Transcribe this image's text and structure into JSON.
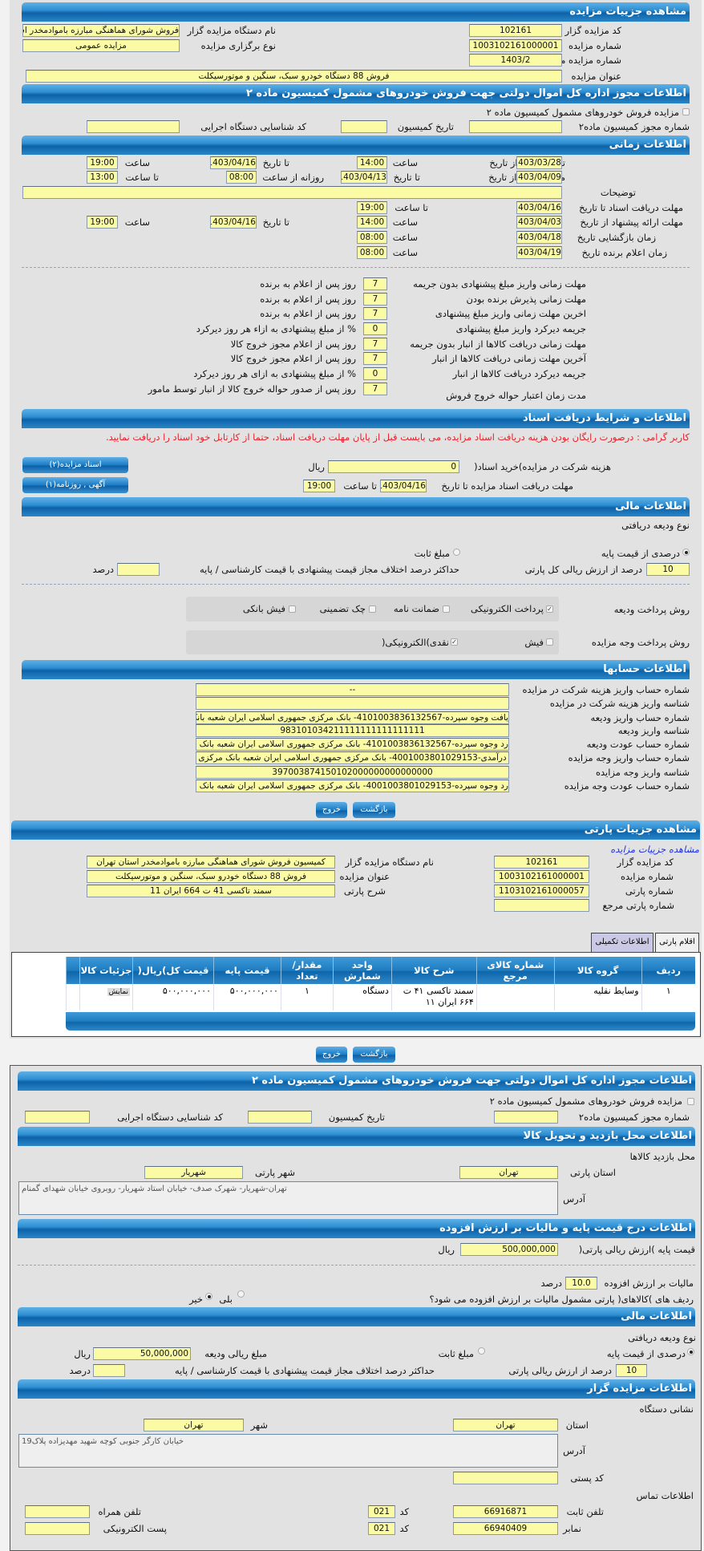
{
  "auction": {
    "title": "مشاهده جزییات مزایده",
    "code_label": "کد مزایده گزار",
    "code": "102161",
    "org_label": "نام دستگاه مزایده گزار",
    "org": "فروش شورای هماهنگی مبارزه باموادمخدر اس",
    "number_label": "شماره مزایده",
    "number": "1003102161000001",
    "type_label": "نوع برگزاری مزایده",
    "type": "مزایده عمومی",
    "ref_label": "شماره مزایده مرجع",
    "ref": "1403/2",
    "subject_label": "عنوان مزایده",
    "subject": "فروش 88 دستگاه خودرو سبک، سنگین و موتورسیکلت"
  },
  "permit": {
    "title": "اطلاعات مجوز اداره کل اموال دولتی جهت فروش خودروهای مشمول کمیسیون ماده ۲",
    "checkbox_label": "مزایده فروش خودروهای مشمول کمیسیون ماده ۲",
    "permit_no_label": "شماره مجوز کمیسیون ماده۲",
    "permit_no": "",
    "date_label": "تاریخ کمیسیون",
    "date": "",
    "exec_code_label": "کد شناسایی دستگاه اجرایی",
    "exec_code": ""
  },
  "timing": {
    "title": "اطلاعات زمانی",
    "publish": {
      "label": "تاریخ انتشار از تاریخ",
      "from_date": "1403/03/28",
      "time_label": "ساعت",
      "from_time": "14:00",
      "to_label": "تا تاریخ",
      "to_date": "1403/04/16",
      "time2_label": "ساعت",
      "to_time": "19:00"
    },
    "visit": {
      "label": "مهلت بازدید از تاریخ",
      "from_date": "1403/04/09",
      "to_label": "تا تاریخ",
      "to_date": "1403/04/13",
      "daily_label": "روزانه از ساعت",
      "daily_from": "08:00",
      "daily_to_label": "تا ساعت",
      "daily_to": "13:00"
    },
    "desc_label": "توضیحات",
    "desc": "",
    "docs": {
      "label": "مهلت دریافت اسناد  تا تاریخ",
      "date": "1403/04/16",
      "time_label": "تا ساعت",
      "time": "19:00"
    },
    "offer": {
      "label": "مهلت ارائه پیشنهاد  از تاریخ",
      "from_date": "1403/04/03",
      "time_label": "ساعت",
      "from_time": "14:00",
      "to_label": "تا تاریخ",
      "to_date": "1403/04/16",
      "time2_label": "ساعت",
      "to_time": "19:00"
    },
    "opening": {
      "label": "زمان بازگشایی   تاریخ",
      "date": "1403/04/18",
      "time_label": "ساعت",
      "time": "08:00"
    },
    "winner": {
      "label": "زمان اعلام برنده   تاریخ",
      "date": "1403/04/19",
      "time_label": "ساعت",
      "time": "08:00"
    }
  },
  "deadlines": [
    {
      "label": "مهلت زمانی واریز مبلغ پیشنهادی بدون جریمه",
      "value": "7",
      "suffix": "روز پس از اعلام به برنده"
    },
    {
      "label": "مهلت زمانی پذیرش برنده بودن",
      "value": "7",
      "suffix": "روز پس از اعلام به برنده"
    },
    {
      "label": "اخرین مهلت زمانی واریز مبلغ پیشنهادی",
      "value": "7",
      "suffix": "روز پس از اعلام به برنده"
    },
    {
      "label": "جریمه دیرکرد واریز مبلغ پیشنهادی",
      "value": "0",
      "suffix": "% از مبلغ پیشنهادی به ازاء هر روز دیرکرد"
    },
    {
      "label": "مهلت زمانی دریافت کالاها از انبار بدون جریمه",
      "value": "7",
      "suffix": "روز پس از اعلام مجوز خروج کالا"
    },
    {
      "label": "آخرین مهلت زمانی دریافت کالاها از انبار",
      "value": "7",
      "suffix": "روز پس از اعلام مجوز خروج کالا"
    },
    {
      "label": "جریمه دیرکرد دریافت کالاها از انبار",
      "value": "0",
      "suffix": "% از مبلغ پیشنهادی به ازای هر روز دیرکرد"
    },
    {
      "label": "مدت زمان اعتبار حواله خروج فروش",
      "value": "7",
      "suffix": "روز پس از صدور حواله خروج کالا از انبار توسط مامور"
    }
  ],
  "documents": {
    "title": "اطلاعات و شرایط دریافت اسناد",
    "notice": "کاربر گرامی : درصورت رایگان بودن هزینه دریافت اسناد مزایده، می بایست قبل از پایان مهلت دریافت اسناد، حتما از کارتابل خود اسناد را دریافت نمایید.",
    "fee_label": "هزینه شرکت در مزایده)خرید اسناد(",
    "fee": "0",
    "fee_unit": "ریال",
    "deadline_label": "مهلت دریافت اسناد مزایده تا تاریخ",
    "deadline_date": "1403/04/16",
    "deadline_time_label": "تا ساعت",
    "deadline_time": "19:00",
    "btn_docs": "اسناد مزایده(۲)",
    "btn_ads": "آگهی , روزنامه(۱)"
  },
  "finance": {
    "title": "اطلاعات مالی",
    "deposit_type_label": "نوع ودیعه دریافتی",
    "opt_percent": "درصدی از قیمت پایه",
    "opt_fixed": "مبلغ ثابت",
    "selected": "percent",
    "percent": "10",
    "percent_label": "درصد از ارزش ریالی کل پارتی",
    "max_diff_label": "حداکثر درصد اختلاف مجاز قیمت پیشنهادی با قیمت کارشناسی / پایه",
    "max_diff": "",
    "max_diff_unit": "درصد",
    "deposit_method_label": "روش پرداخت ودیعه",
    "deposit_methods": [
      {
        "label": "پرداخت الکترونیکی",
        "checked": true
      },
      {
        "label": "ضمانت نامه",
        "checked": false
      },
      {
        "label": "چک تضمینی",
        "checked": false
      },
      {
        "label": "فیش بانکی",
        "checked": false
      }
    ],
    "payment_method_label": "روش پرداخت وجه مزایده",
    "payment_methods": [
      {
        "label": "فیش",
        "checked": false
      },
      {
        "label": "نقدی)الکترونیکی(",
        "checked": true
      }
    ]
  },
  "accounts": {
    "title": "اطلاعات حسابها",
    "rows": [
      {
        "label": "شماره حساب واریز هزینه شرکت در مزایده",
        "value": "--"
      },
      {
        "label": "شناسه واریز هزینه شرکت در مزایده",
        "value": ""
      },
      {
        "label": "شماره حساب واریز ودیعه",
        "value": "یافت وجوه سپرده-4101003836132567- بانک مرکزی جمهوری اسلامی ایران شعبه بانک مرکزی"
      },
      {
        "label": "شناسه واریز ودیعه",
        "value": "983101034211111111111111111"
      },
      {
        "label": "شماره حساب عودت ودیعه",
        "value": "رد وجوه سپرده-4101003836132567- بانک مرکزی جمهوری اسلامی ایران شعبه بانک مرکزی"
      },
      {
        "label": "شماره حساب واریز وجه مزایده",
        "value": "درآمدی-4001003801029153- بانک مرکزی جمهوری اسلامی ایران شعبه بانک مرکزی"
      },
      {
        "label": "شناسه واریز وجه مزایده",
        "value": "397003874150102000000000000000"
      },
      {
        "label": "شماره حساب عودت وجه مزایده",
        "value": "رد وجوه سپرده-4001003801029153- بانک مرکزی جمهوری اسلامی ایران شعبه بانک مرکزی"
      }
    ]
  },
  "actions": {
    "back": "بازگشت",
    "exit": "خروج"
  },
  "lot": {
    "title": "مشاهده جزییات پارتی",
    "auction_link": "مشاهده جزییات مزایده",
    "code_label": "کد مزایده گزار",
    "code": "102161",
    "org_label": "نام دستگاه مزایده گزار",
    "org": "کمیسیون فروش شورای هماهنگی مبارزه باموادمخدر استان تهران",
    "number_label": "شماره مزایده",
    "number": "1003102161000001",
    "subject_label": "عنوان مزایده",
    "subject": "فروش 88 دستگاه خودرو سبک، سنگین و موتورسیکلت",
    "lot_no_label": "شماره پارتی",
    "lot_no": "1103102161000057",
    "desc_label": "شرح پارتی",
    "desc": "سمند تاکسی 41 ت 664 ایران 11",
    "ref_label": "شماره پارتی مرجع",
    "ref": "",
    "tabs": [
      {
        "label": "اقلام پارتی",
        "active": false
      },
      {
        "label": "اطلاعات تکمیلی",
        "active": true
      }
    ],
    "table": {
      "headers": [
        "ردیف",
        "گروه کالا",
        "شماره کالای مرجع",
        "شرح کالا",
        "واحد شمارش",
        "مقدار/ تعداد",
        "قیمت پایه",
        "قیمت کل)ریال(",
        "جزئیات کالا"
      ],
      "rows": [
        [
          "۱",
          "وسایط نقلیه",
          "",
          "سمند تاکسی ۴۱ ت ۶۶۴ ایران ۱۱",
          "دستگاه",
          "۱",
          "۵۰۰,۰۰۰,۰۰۰",
          "۵۰۰,۰۰۰,۰۰۰",
          "نمایش"
        ]
      ]
    }
  },
  "permit2": {
    "title": "اطلاعات مجوز اداره کل اموال دولتی جهت فروش خودروهای مشمول کمیسیون ماده ۲",
    "checkbox_label": "مزایده فروش خودروهای مشمول کمیسیون ماده ۲",
    "permit_no_label": "شماره مجوز کمیسیون ماده۲",
    "date_label": "تاریخ کمیسیون",
    "exec_code_label": "کد شناسایی دستگاه اجرایی"
  },
  "visit_place": {
    "title": "اطلاعات محل بازدید و تحویل کالا",
    "subtitle": "محل بازدید کالاها",
    "province_label": "استان پارتی",
    "province": "تهران",
    "city_label": "شهر پارتی",
    "city": "شهریار",
    "address_label": "آدرس",
    "address": "تهران-شهریار- شهرک صدف- خیابان استاد شهریار- روبروی خیابان شهدای گمنام"
  },
  "pricing": {
    "title": "اطلاعات درج قیمت پایه و مالیات بر ارزش افزوده",
    "base_label": "قیمت پایه )ارزش ریالی پارتی(",
    "base": "500,000,000",
    "base_unit": "ریال",
    "vat_label": "مالیات بر ارزش افزوده",
    "vat": "10.0",
    "vat_unit": "درصد",
    "vat_q": "ردیف های )کالاهای( پارتی مشمول مالیات بر ارزش افزوده می شود؟",
    "yes": "بلی",
    "no": "خیر",
    "vat_selected": "no"
  },
  "finance2": {
    "title": "اطلاعات مالی",
    "deposit_type_label": "نوع ودیعه دریافتی",
    "opt_percent": "درصدی از قیمت پایه",
    "opt_fixed": "مبلغ ثابت",
    "deposit_amount_label": "مبلغ ریالی ودیعه",
    "deposit_amount": "50,000,000",
    "deposit_unit": "ریال",
    "percent": "10",
    "percent_label": "درصد از ارزش ریالی پارتی",
    "max_diff_label": "حداکثر درصد اختلاف مجاز قیمت پیشنهادی با قیمت کارشناسی / پایه",
    "max_diff_unit": "درصد"
  },
  "auctioneer": {
    "title": "اطلاعات مزایده گزار",
    "address_title": "نشانی دستگاه",
    "province_label": "استان",
    "province": "تهران",
    "city_label": "شهر",
    "city": "تهران",
    "address_label": "آدرس",
    "address": "خیابان کارگر جنوبی کوچه شهید مهدیزاده پلاک19",
    "postal_label": "کد پستی",
    "postal": "",
    "contact_title": "اطلاعات تماس",
    "phone_label": "تلفن ثابت",
    "phone": "66916871",
    "code_label": "کد",
    "phone_code": "021",
    "mobile_label": "تلفن همراه",
    "mobile": "",
    "fax_label": "نمابر",
    "fax": "66940409",
    "fax_code": "021",
    "email_label": "پست الکترونیکی",
    "email": ""
  }
}
